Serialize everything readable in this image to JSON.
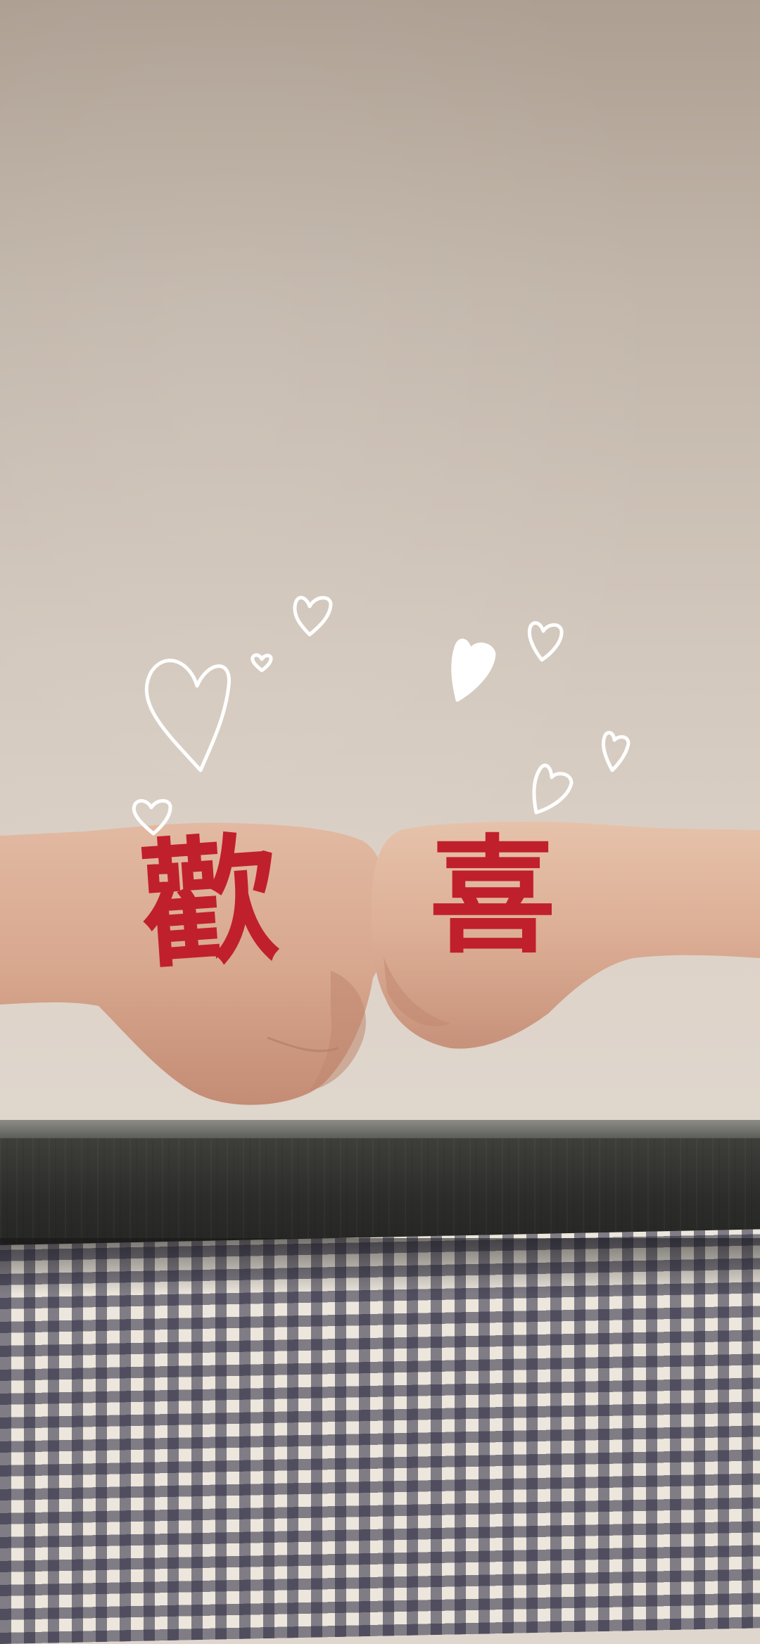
{
  "photo": {
    "caption_left": "歡",
    "caption_right": "喜",
    "ink_color": "#c0202b",
    "heart_color": "#ffffff",
    "cloth_pattern": "gingham",
    "cloth_colors": [
      "#28263e",
      "#ece6dc"
    ]
  }
}
